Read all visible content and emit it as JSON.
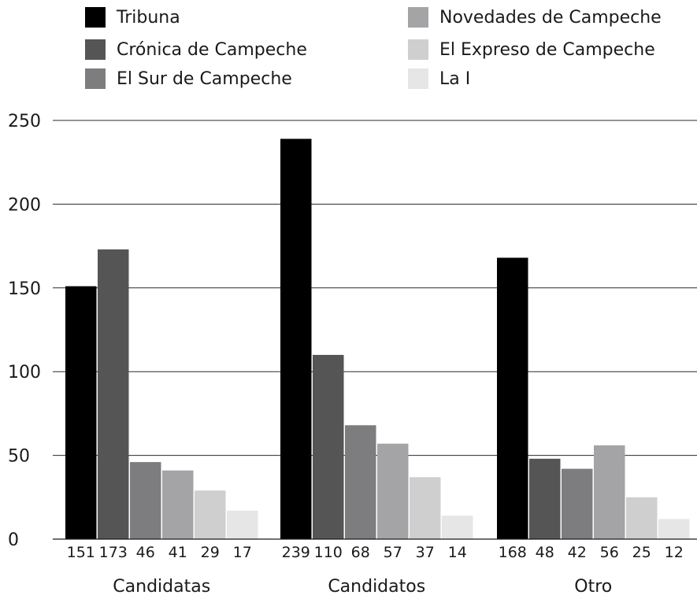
{
  "chart_data": {
    "type": "bar",
    "title": "",
    "xlabel": "",
    "ylabel": "",
    "ylim": [
      0,
      250
    ],
    "yticks": [
      0,
      50,
      100,
      150,
      200,
      250
    ],
    "grid": true,
    "legend_position": "top",
    "categories": [
      "Candidatas",
      "Candidatos",
      "Otro"
    ],
    "series": [
      {
        "name": "Tribuna",
        "color": "#000000",
        "values": [
          151,
          239,
          168
        ]
      },
      {
        "name": "Crónica de Campeche",
        "color": "#555555",
        "values": [
          173,
          110,
          48
        ]
      },
      {
        "name": "El Sur de Campeche",
        "color": "#7d7d7f",
        "values": [
          46,
          68,
          42
        ]
      },
      {
        "name": "Novedades de Campeche",
        "color": "#a4a4a6",
        "values": [
          41,
          57,
          56
        ]
      },
      {
        "name": "El Expreso de Campeche",
        "color": "#cfcfd0",
        "values": [
          29,
          37,
          25
        ]
      },
      {
        "name": "La I",
        "color": "#e6e6e7",
        "values": [
          17,
          14,
          12
        ]
      }
    ],
    "data_labels": [
      [
        "151",
        "173",
        "46",
        "41",
        "29",
        "17"
      ],
      [
        "239",
        "110",
        "68",
        "57",
        "37",
        "14"
      ],
      [
        "168",
        "48",
        "42",
        "56",
        "25",
        "12"
      ]
    ]
  }
}
